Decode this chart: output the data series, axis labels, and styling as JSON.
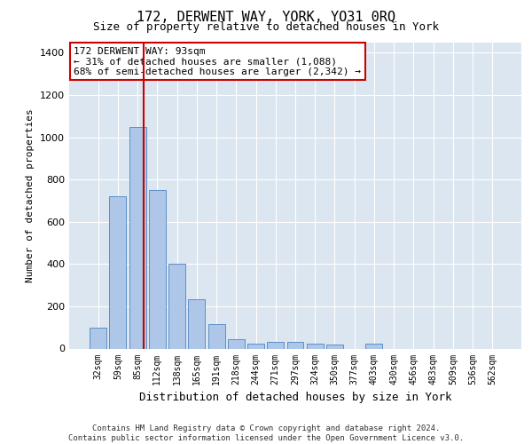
{
  "title": "172, DERWENT WAY, YORK, YO31 0RQ",
  "subtitle": "Size of property relative to detached houses in York",
  "xlabel": "Distribution of detached houses by size in York",
  "ylabel": "Number of detached properties",
  "footer_line1": "Contains HM Land Registry data © Crown copyright and database right 2024.",
  "footer_line2": "Contains public sector information licensed under the Open Government Licence v3.0.",
  "categories": [
    "32sqm",
    "59sqm",
    "85sqm",
    "112sqm",
    "138sqm",
    "165sqm",
    "191sqm",
    "218sqm",
    "244sqm",
    "271sqm",
    "297sqm",
    "324sqm",
    "350sqm",
    "377sqm",
    "403sqm",
    "430sqm",
    "456sqm",
    "483sqm",
    "509sqm",
    "536sqm",
    "562sqm"
  ],
  "values": [
    100,
    720,
    1050,
    750,
    400,
    235,
    115,
    45,
    25,
    30,
    30,
    25,
    20,
    0,
    25,
    0,
    0,
    0,
    0,
    0,
    0
  ],
  "bar_color": "#aec6e8",
  "bar_edge_color": "#5b8fc9",
  "background_color": "#dce6f0",
  "grid_color": "#ffffff",
  "red_line_color": "#cc0000",
  "annotation_line1": "172 DERWENT WAY: 93sqm",
  "annotation_line2": "← 31% of detached houses are smaller (1,088)",
  "annotation_line3": "68% of semi-detached houses are larger (2,342) →",
  "annotation_box_facecolor": "#ffffff",
  "annotation_box_edgecolor": "#cc0000",
  "ylim": [
    0,
    1450
  ],
  "yticks": [
    0,
    200,
    400,
    600,
    800,
    1000,
    1200,
    1400
  ],
  "title_fontsize": 11,
  "subtitle_fontsize": 9,
  "ylabel_fontsize": 8,
  "xlabel_fontsize": 9,
  "tick_fontsize": 7,
  "ytick_fontsize": 8,
  "annotation_fontsize": 8,
  "footer_fontsize": 6.5
}
